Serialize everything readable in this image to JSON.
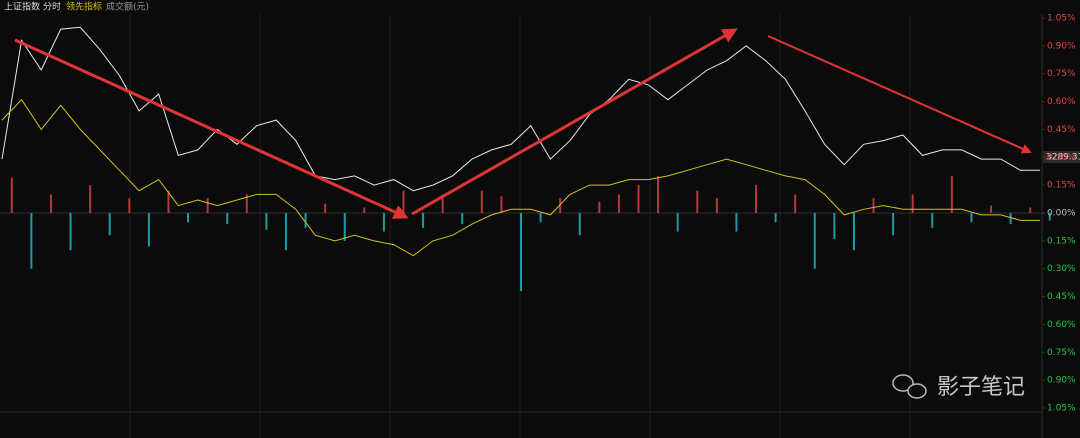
{
  "chart_data": {
    "type": "line",
    "title": "上证指数",
    "subtitle": "分时",
    "last_price": 3289.31,
    "watermark": "影子笔记",
    "ylim": [
      -1.05,
      1.05
    ],
    "yticks": [
      {
        "value": 1.05,
        "label": "1.05%"
      },
      {
        "value": 0.9,
        "label": "0.90%"
      },
      {
        "value": 0.75,
        "label": "0.75%"
      },
      {
        "value": 0.6,
        "label": "0.60%"
      },
      {
        "value": 0.45,
        "label": "0.45%"
      },
      {
        "value": 0.3,
        "label": "0.30%"
      },
      {
        "value": 0.15,
        "label": "0.15%"
      },
      {
        "value": 0,
        "label": "0.00%"
      },
      {
        "value": -0.15,
        "label": "0.15%"
      },
      {
        "value": -0.3,
        "label": "0.30%"
      },
      {
        "value": -0.45,
        "label": "0.45%"
      },
      {
        "value": -0.6,
        "label": "0.60%"
      },
      {
        "value": -0.75,
        "label": "0.75%"
      },
      {
        "value": -0.9,
        "label": "0.90%"
      },
      {
        "value": -1.05,
        "label": "1.05%"
      }
    ],
    "series": [
      {
        "color": "#e8e8e8",
        "values": [
          0.29,
          0.93,
          0.77,
          0.99,
          1.0,
          0.88,
          0.74,
          0.55,
          0.64,
          0.31,
          0.34,
          0.45,
          0.37,
          0.47,
          0.5,
          0.39,
          0.2,
          0.18,
          0.2,
          0.15,
          0.18,
          0.12,
          0.15,
          0.2,
          0.29,
          0.34,
          0.37,
          0.47,
          0.29,
          0.39,
          0.53,
          0.61,
          0.72,
          0.69,
          0.61,
          0.69,
          0.77,
          0.82,
          0.9,
          0.82,
          0.72,
          0.55,
          0.37,
          0.26,
          0.37,
          0.39,
          0.42,
          0.31,
          0.34,
          0.34,
          0.29,
          0.29,
          0.23,
          0.23
        ]
      },
      {
        "name": "领先指标",
        "color": "#d4c21a",
        "values": [
          0.5,
          0.61,
          0.45,
          0.58,
          0.45,
          0.34,
          0.23,
          0.12,
          0.18,
          0.04,
          0.07,
          0.04,
          0.07,
          0.1,
          0.1,
          0.02,
          -0.12,
          -0.15,
          -0.12,
          -0.15,
          -0.17,
          -0.23,
          -0.15,
          -0.12,
          -0.06,
          -0.01,
          0.02,
          0.02,
          -0.01,
          0.1,
          0.15,
          0.15,
          0.18,
          0.18,
          0.2,
          0.23,
          0.26,
          0.29,
          0.26,
          0.23,
          0.2,
          0.18,
          0.1,
          -0.01,
          0.02,
          0.04,
          0.02,
          0.02,
          0.02,
          0.02,
          -0.01,
          -0.01,
          -0.04,
          -0.04
        ]
      },
      {
        "name": "成交额(元)",
        "type": "bar",
        "up_color": "#b5393a",
        "down_color": "#1d9aa6",
        "values": [
          0.19,
          -0.3,
          0.1,
          -0.2,
          0.15,
          -0.12,
          0.08,
          -0.18,
          0.12,
          -0.05,
          0.08,
          -0.06,
          0.1,
          -0.09,
          -0.2,
          -0.08,
          0.05,
          -0.15,
          0.03,
          -0.1,
          0.12,
          -0.08,
          0.1,
          -0.06,
          0.12,
          0.09,
          -0.42,
          -0.05,
          0.08,
          -0.12,
          0.06,
          0.1,
          0.15,
          0.2,
          -0.1,
          0.12,
          0.08,
          -0.1,
          0.15,
          -0.05,
          0.1,
          -0.3,
          -0.14,
          -0.2,
          0.08,
          -0.12,
          0.1,
          -0.08,
          0.2,
          -0.05,
          0.04,
          -0.06,
          0.03,
          -0.04
        ]
      }
    ]
  }
}
